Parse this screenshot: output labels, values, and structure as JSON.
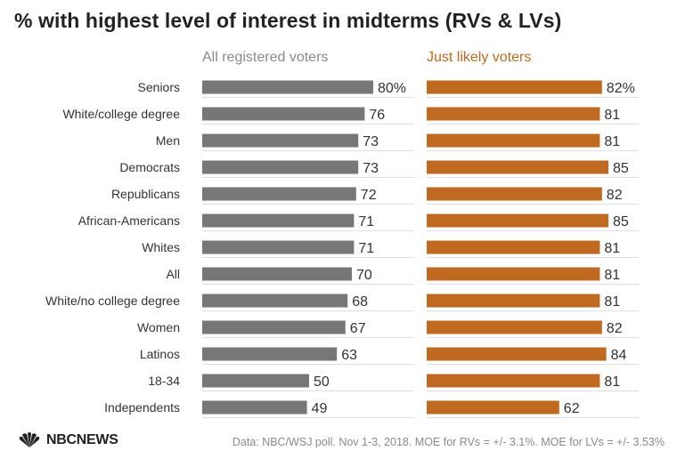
{
  "title": "% with highest level of interest in midterms (RVs & LVs)",
  "colors": {
    "rv": "#777777",
    "lv": "#c06a21",
    "grid": "#dddddd",
    "text": "#333333"
  },
  "logo": {
    "text": "NBCNEWS",
    "icon": "nbc-peacock-icon"
  },
  "source": "Data: NBC/WSJ poll. Nov 1-3, 2018. MOE for RVs = +/- 3.1%. MOE for LVs = +/- 3.53%",
  "chart_data": {
    "type": "bar",
    "title": "% with highest level of interest in midterms (RVs & LVs)",
    "categories": [
      "Seniors",
      "White/college degree",
      "Men",
      "Democrats",
      "Republicans",
      "African-Americans",
      "Whites",
      "All",
      "White/no college degree",
      "Women",
      "Latinos",
      "18-34",
      "Independents"
    ],
    "series": [
      {
        "name": "All registered voters",
        "values": [
          80,
          76,
          73,
          73,
          72,
          71,
          71,
          70,
          68,
          67,
          63,
          50,
          49
        ],
        "labels": [
          "80%",
          "76",
          "73",
          "73",
          "72",
          "71",
          "71",
          "70",
          "68",
          "67",
          "63",
          "50",
          "49"
        ]
      },
      {
        "name": "Just likely voters",
        "values": [
          82,
          81,
          81,
          85,
          82,
          85,
          81,
          81,
          81,
          82,
          84,
          81,
          62
        ],
        "labels": [
          "82%",
          "81",
          "81",
          "85",
          "82",
          "85",
          "81",
          "81",
          "81",
          "82",
          "84",
          "81",
          "62"
        ]
      }
    ],
    "xlim": [
      0,
      100
    ],
    "grid": true
  }
}
